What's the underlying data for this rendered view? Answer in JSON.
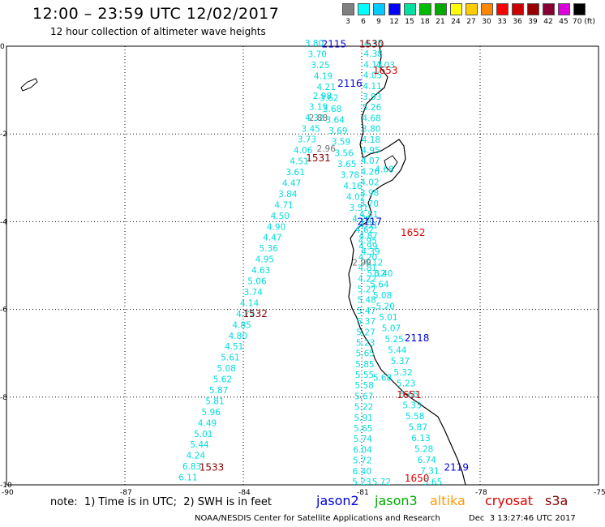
{
  "header": {
    "title": "12:00 – 23:59 UTC 12/02/2017",
    "subtitle": "12 hour collection of altimeter wave heights"
  },
  "color_scale": {
    "labels": [
      "3",
      "6",
      "9",
      "12",
      "15",
      "18",
      "21",
      "24",
      "27",
      "30",
      "33",
      "36",
      "39",
      "42",
      "45",
      "70 (ft)"
    ],
    "colors": [
      "#808080",
      "#00ffff",
      "#00ccff",
      "#0000ff",
      "#00e0a0",
      "#00bb00",
      "#00aa00",
      "#ffff00",
      "#ffcc00",
      "#ff8800",
      "#ff0000",
      "#cc0000",
      "#990000",
      "#880033",
      "#dd00dd",
      "#000000"
    ]
  },
  "axes": {
    "lat_labels": [
      "0",
      "-2",
      "-4",
      "-6",
      "-8",
      "-10"
    ],
    "lon_labels": [
      "-90",
      "-87",
      "-84",
      "-81",
      "-78",
      "-75"
    ],
    "lat_range": [
      -10,
      0
    ],
    "lon_range": [
      -90,
      -75
    ]
  },
  "tracks": [
    {
      "name": "jason2",
      "color": "#00dddd",
      "path": [
        [
          -82.2,
          0
        ],
        [
          -79.2,
          -10
        ]
      ],
      "values": [
        "3.80",
        "3.70",
        "3.25",
        "4.19",
        "4.21",
        "3.62",
        "3.68",
        "3.64",
        "3.69",
        "3.59",
        "3.56",
        "3.65",
        "3.78",
        "4.16",
        "4.02",
        "3.51",
        "4.26",
        "4.62",
        "4.95",
        "4.39",
        "4.12",
        "5.12",
        "5.64",
        "5.08",
        "5.20",
        "5.01",
        "5.07",
        "5.25",
        "5.44",
        "5.37",
        "5.32",
        "5.23",
        "5.65",
        "5.33",
        "5.58",
        "5.87",
        "6.13",
        "5.28",
        "6.74",
        "7.31",
        "5.65"
      ],
      "passes": [
        {
          "label": "2115",
          "lon": -81.7,
          "lat": 0.05
        },
        {
          "label": "2116",
          "lon": -81.3,
          "lat": -0.85
        },
        {
          "label": "2117",
          "lon": -80.8,
          "lat": -4.0
        },
        {
          "label": "2118",
          "lon": -79.6,
          "lat": -6.65
        },
        {
          "label": "2119",
          "lon": -78.6,
          "lat": -9.6
        }
      ]
    },
    {
      "name": "jason3",
      "color": "#00dddd",
      "path": [
        [
          -80.7,
          0
        ],
        [
          -81.0,
          -10
        ]
      ],
      "values": [
        "4.35",
        "4.38",
        "4.13",
        "4.05",
        "4.11",
        "3.93",
        "5.26",
        "4.68",
        "3.80",
        "4.18",
        "4.95",
        "4.07",
        "4.26",
        "4.02",
        "3.98",
        "3.70",
        "4.51",
        "4.31",
        "4.87",
        "4.99",
        "4.20",
        "4.81",
        "4.22",
        "5.27",
        "5.48",
        "5.47",
        "5.37",
        "5.27",
        "5.23",
        "5.65",
        "5.85",
        "5.55",
        "5.58",
        "5.67",
        "5.22",
        "5.91",
        "5.65",
        "5.74",
        "6.04",
        "5.72",
        "6.40",
        "5.23"
      ],
      "passes": [
        {
          "label": "1530",
          "lon": -80.75,
          "lat": 0.05
        },
        {
          "label": "1531",
          "lon": -82.1,
          "lat": -2.55
        },
        {
          "label": "1532",
          "lon": -83.7,
          "lat": -6.1
        },
        {
          "label": "1533",
          "lon": -84.8,
          "lat": -9.6
        }
      ]
    },
    {
      "name": "altika",
      "color": "#00dddd",
      "path": [
        [
          -82.0,
          -1.2
        ],
        [
          -85.4,
          -9.9
        ]
      ],
      "values": [
        "2.98",
        "3.19",
        "4.32",
        "3.45",
        "3.73",
        "4.06",
        "4.51",
        "3.61",
        "4.47",
        "3.84",
        "4.71",
        "4.50",
        "4.90",
        "4.47",
        "5.36",
        "4.95",
        "4.63",
        "5.06",
        "3.74",
        "4.14",
        "4.72",
        "4.85",
        "4.80",
        "4.51",
        "5.61",
        "5.08",
        "5.62",
        "5.87",
        "5.81",
        "5.96",
        "4.49",
        "5.01",
        "5.44",
        "4.24",
        "6.83",
        "6.11"
      ],
      "passes": []
    },
    {
      "name": "cryosat",
      "color": "#00dddd",
      "path": [
        [
          -80.4,
          -0.5
        ],
        [
          -80.5,
          -10
        ]
      ],
      "values": [
        "4.03",
        "4.68",
        "6.40",
        "5.68",
        "5.72"
      ],
      "passes": [
        {
          "label": "1653",
          "lon": -80.4,
          "lat": -0.55
        },
        {
          "label": "1652",
          "lon": -79.7,
          "lat": -4.25
        },
        {
          "label": "1651",
          "lon": -79.8,
          "lat": -7.95
        },
        {
          "label": "1650",
          "lon": -79.6,
          "lat": -9.85
        }
      ]
    }
  ],
  "gray_values": [
    "2.88",
    "2.96",
    "2.99"
  ],
  "legend": {
    "note": "note:  1) Time is in UTC;  2) SWH is in feet",
    "satellites": [
      {
        "name": "jason2",
        "color": "#0000dd"
      },
      {
        "name": "jason3",
        "color": "#00aa00"
      },
      {
        "name": "altika",
        "color": "#ff9900"
      },
      {
        "name": "cryosat",
        "color": "#dd0000"
      },
      {
        "name": "s3a",
        "color": "#880000"
      }
    ]
  },
  "credit": "NOAA/NESDIS Center for Satellite Applications and Research",
  "generated": "Dec  3 13:27:46 UTC 2017"
}
